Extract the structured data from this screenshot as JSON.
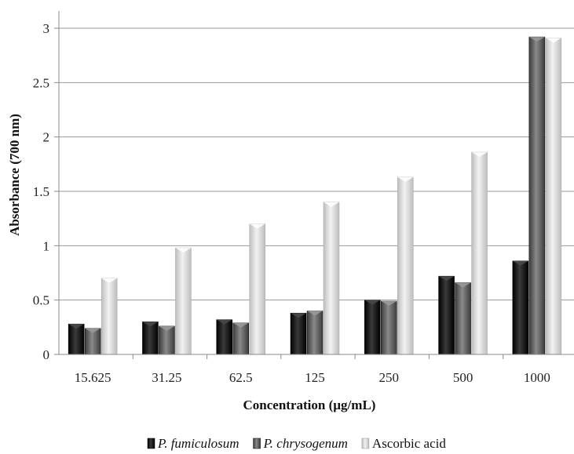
{
  "chart_data": {
    "type": "bar",
    "categories": [
      "15.625",
      "31.25",
      "62.5",
      "125",
      "250",
      "500",
      "1000"
    ],
    "series": [
      {
        "name": "P. fumiculosum",
        "color": "#111111",
        "values": [
          0.28,
          0.3,
          0.32,
          0.38,
          0.5,
          0.72,
          0.86
        ]
      },
      {
        "name": "P. chrysogenum",
        "color": "#5a5a5a",
        "values": [
          0.24,
          0.26,
          0.29,
          0.4,
          0.49,
          0.66,
          2.92
        ]
      },
      {
        "name": "Ascorbic acid",
        "color": "#d9d9d9",
        "values": [
          0.7,
          0.98,
          1.2,
          1.4,
          1.63,
          1.86,
          2.91
        ]
      }
    ],
    "title": "",
    "xlabel": "Concentration (µg/mL)",
    "ylabel": "Absorbance (700 nm)",
    "ylim": [
      0,
      3
    ],
    "yticks": [
      "0",
      "0.5",
      "1",
      "1.5",
      "2",
      "2.5",
      "3"
    ],
    "grid": true,
    "legend_position": "bottom"
  }
}
